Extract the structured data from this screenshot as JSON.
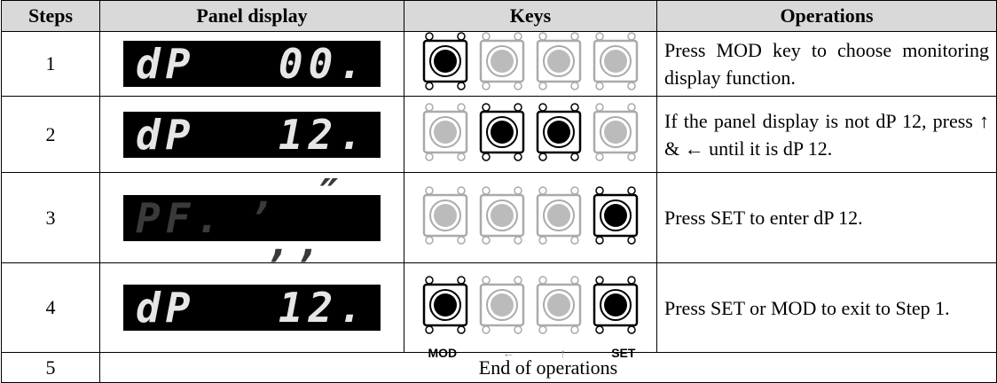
{
  "header": [
    "Steps",
    "Panel display",
    "Keys",
    "Operations"
  ],
  "rows": [
    {
      "step": "1",
      "display": [
        "dP",
        "00."
      ],
      "display_dim": false,
      "keys": [
        true,
        false,
        false,
        false
      ],
      "operation": "Press MOD key to choose monitoring display function."
    },
    {
      "step": "2",
      "display": [
        "dP",
        "12."
      ],
      "display_dim": false,
      "keys": [
        false,
        true,
        true,
        false
      ],
      "operation": "If the panel display is not dP 12, press ↑ & ← until it is dP 12."
    },
    {
      "step": "3",
      "display": [
        "PF.",
        ", ″ ,,"
      ],
      "display_dim": true,
      "keys": [
        false,
        false,
        false,
        true
      ],
      "operation": "Press SET to enter dP 12."
    },
    {
      "step": "4",
      "display": [
        "dP",
        "12."
      ],
      "display_dim": false,
      "keys": [
        true,
        false,
        false,
        true
      ],
      "operation": "Press SET or MOD to exit to Step 1."
    }
  ],
  "key_labels": [
    "MOD",
    "←",
    "↑",
    "SET"
  ],
  "last_row": {
    "step": "5",
    "text": "End of operations"
  }
}
